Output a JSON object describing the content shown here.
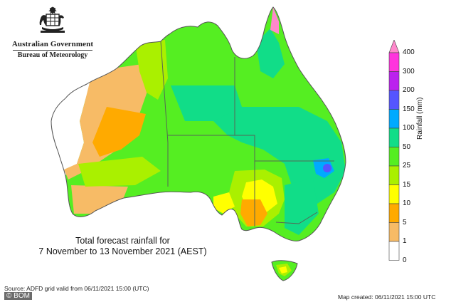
{
  "header": {
    "government": "Australian Government",
    "agency": "Bureau of Meteorology"
  },
  "map": {
    "title_line1": "Total forecast rainfall for",
    "title_line2": "7 November to 13 November 2021 (AEST)",
    "source": "Source: ADFD grid valid from 06/11/2021 15:00 (UTC)",
    "map_created": "Map created: 06/11/2021 15:00 UTC",
    "credit": "© BOM"
  },
  "legend": {
    "unit_label": "Rainfall (mm)",
    "classes": [
      {
        "label": "400",
        "color": "#ff88cc"
      },
      {
        "label": "300",
        "color": "#ff33dd"
      },
      {
        "label": "200",
        "color": "#bb22ee"
      },
      {
        "label": "150",
        "color": "#5555ff"
      },
      {
        "label": "100",
        "color": "#00aaff"
      },
      {
        "label": "50",
        "color": "#11dd88"
      },
      {
        "label": "25",
        "color": "#55ee22"
      },
      {
        "label": "15",
        "color": "#aaf000"
      },
      {
        "label": "10",
        "color": "#ffff00"
      },
      {
        "label": "5",
        "color": "#ffaa00"
      },
      {
        "label": "1",
        "color": "#f7bb66"
      },
      {
        "label": "0",
        "color": "#ffffff"
      }
    ]
  }
}
